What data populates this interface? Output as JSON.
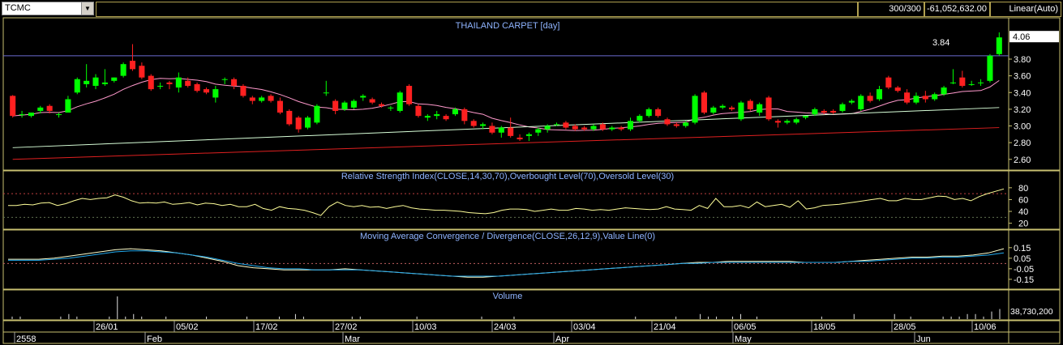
{
  "toolbar": {
    "symbol": "TCMC",
    "bars": "300/300",
    "value": "-61,052,632.00",
    "scale_mode": "Linear(Auto)"
  },
  "colors": {
    "up": "#00ff00",
    "down": "#ff2020",
    "ma_short": "#ff99cc",
    "ma_mid": "#d8ffd8",
    "ma_long": "#e02020",
    "rsi": "#ffff99",
    "macd": "#ffffcc",
    "signal": "#22aaee",
    "panel_border": "#c8c070",
    "title": "#8fb4ff"
  },
  "chart_data": [
    {
      "type": "candlestick",
      "title": "THAILAND CARPET [day]",
      "y_ticks": [
        "4.06",
        "3.80",
        "3.60",
        "3.40",
        "3.20",
        "3.00",
        "2.80",
        "2.60"
      ],
      "last_price_label": "4.06",
      "reference_line": 3.84,
      "reference_label": "3.84",
      "ylim": [
        2.52,
        4.12
      ],
      "candles": [
        {
          "o": 3.36,
          "h": 3.37,
          "l": 3.1,
          "c": 3.12
        },
        {
          "o": 3.14,
          "h": 3.18,
          "l": 3.1,
          "c": 3.14
        },
        {
          "o": 3.12,
          "h": 3.16,
          "l": 3.1,
          "c": 3.16
        },
        {
          "o": 3.18,
          "h": 3.24,
          "l": 3.15,
          "c": 3.22
        },
        {
          "o": 3.24,
          "h": 3.26,
          "l": 3.15,
          "c": 3.18
        },
        {
          "o": 3.14,
          "h": 3.16,
          "l": 3.1,
          "c": 3.14
        },
        {
          "o": 3.16,
          "h": 3.36,
          "l": 3.16,
          "c": 3.32
        },
        {
          "o": 3.4,
          "h": 3.58,
          "l": 3.38,
          "c": 3.56
        },
        {
          "o": 3.5,
          "h": 3.74,
          "l": 3.46,
          "c": 3.54
        },
        {
          "o": 3.48,
          "h": 3.62,
          "l": 3.44,
          "c": 3.58
        },
        {
          "o": 3.5,
          "h": 3.68,
          "l": 3.48,
          "c": 3.52
        },
        {
          "o": 3.54,
          "h": 3.58,
          "l": 3.52,
          "c": 3.58
        },
        {
          "o": 3.6,
          "h": 3.76,
          "l": 3.58,
          "c": 3.74
        },
        {
          "o": 3.78,
          "h": 3.98,
          "l": 3.66,
          "c": 3.68
        },
        {
          "o": 3.72,
          "h": 3.76,
          "l": 3.56,
          "c": 3.58
        },
        {
          "o": 3.6,
          "h": 3.62,
          "l": 3.42,
          "c": 3.44
        },
        {
          "o": 3.48,
          "h": 3.52,
          "l": 3.44,
          "c": 3.48
        },
        {
          "o": 3.52,
          "h": 3.54,
          "l": 3.44,
          "c": 3.5
        },
        {
          "o": 3.46,
          "h": 3.64,
          "l": 3.4,
          "c": 3.58
        },
        {
          "o": 3.54,
          "h": 3.58,
          "l": 3.46,
          "c": 3.48
        },
        {
          "o": 3.5,
          "h": 3.52,
          "l": 3.4,
          "c": 3.42
        },
        {
          "o": 3.44,
          "h": 3.46,
          "l": 3.38,
          "c": 3.4
        },
        {
          "o": 3.34,
          "h": 3.48,
          "l": 3.28,
          "c": 3.44
        },
        {
          "o": 3.56,
          "h": 3.58,
          "l": 3.5,
          "c": 3.56
        },
        {
          "o": 3.56,
          "h": 3.58,
          "l": 3.44,
          "c": 3.48
        },
        {
          "o": 3.48,
          "h": 3.5,
          "l": 3.34,
          "c": 3.36
        },
        {
          "o": 3.34,
          "h": 3.36,
          "l": 3.26,
          "c": 3.3
        },
        {
          "o": 3.3,
          "h": 3.36,
          "l": 3.28,
          "c": 3.34
        },
        {
          "o": 3.36,
          "h": 3.38,
          "l": 3.28,
          "c": 3.3
        },
        {
          "o": 3.3,
          "h": 3.34,
          "l": 3.14,
          "c": 3.16
        },
        {
          "o": 3.18,
          "h": 3.2,
          "l": 3.0,
          "c": 3.02
        },
        {
          "o": 3.1,
          "h": 3.12,
          "l": 2.92,
          "c": 2.96
        },
        {
          "o": 2.98,
          "h": 3.12,
          "l": 2.96,
          "c": 3.1
        },
        {
          "o": 3.04,
          "h": 3.26,
          "l": 3.02,
          "c": 3.24
        },
        {
          "o": 3.4,
          "h": 3.54,
          "l": 3.36,
          "c": 3.4
        },
        {
          "o": 3.3,
          "h": 3.32,
          "l": 3.14,
          "c": 3.18
        },
        {
          "o": 3.2,
          "h": 3.3,
          "l": 3.18,
          "c": 3.28
        },
        {
          "o": 3.22,
          "h": 3.32,
          "l": 3.2,
          "c": 3.3
        },
        {
          "o": 3.34,
          "h": 3.38,
          "l": 3.3,
          "c": 3.36
        },
        {
          "o": 3.32,
          "h": 3.34,
          "l": 3.26,
          "c": 3.28
        },
        {
          "o": 3.26,
          "h": 3.28,
          "l": 3.22,
          "c": 3.24
        },
        {
          "o": 3.22,
          "h": 3.24,
          "l": 3.18,
          "c": 3.22
        },
        {
          "o": 3.18,
          "h": 3.42,
          "l": 3.16,
          "c": 3.4
        },
        {
          "o": 3.48,
          "h": 3.5,
          "l": 3.24,
          "c": 3.26
        },
        {
          "o": 3.24,
          "h": 3.26,
          "l": 3.1,
          "c": 3.12
        },
        {
          "o": 3.1,
          "h": 3.14,
          "l": 3.06,
          "c": 3.12
        },
        {
          "o": 3.12,
          "h": 3.18,
          "l": 3.08,
          "c": 3.14
        },
        {
          "o": 3.12,
          "h": 3.14,
          "l": 3.06,
          "c": 3.08
        },
        {
          "o": 3.14,
          "h": 3.22,
          "l": 3.12,
          "c": 3.2
        },
        {
          "o": 3.2,
          "h": 3.22,
          "l": 3.02,
          "c": 3.06
        },
        {
          "o": 3.06,
          "h": 3.08,
          "l": 2.98,
          "c": 3.0
        },
        {
          "o": 3.0,
          "h": 3.04,
          "l": 2.96,
          "c": 3.02
        },
        {
          "o": 3.0,
          "h": 3.04,
          "l": 2.9,
          "c": 2.92
        },
        {
          "o": 2.92,
          "h": 3.0,
          "l": 2.86,
          "c": 2.98
        },
        {
          "o": 2.98,
          "h": 3.1,
          "l": 2.86,
          "c": 2.88
        },
        {
          "o": 2.86,
          "h": 2.9,
          "l": 2.82,
          "c": 2.84
        },
        {
          "o": 2.88,
          "h": 2.92,
          "l": 2.82,
          "c": 2.9
        },
        {
          "o": 2.92,
          "h": 2.98,
          "l": 2.88,
          "c": 2.96
        },
        {
          "o": 2.96,
          "h": 3.02,
          "l": 2.92,
          "c": 3.0
        },
        {
          "o": 3.02,
          "h": 3.04,
          "l": 3.0,
          "c": 3.02
        },
        {
          "o": 3.04,
          "h": 3.06,
          "l": 2.96,
          "c": 2.98
        },
        {
          "o": 3.0,
          "h": 3.02,
          "l": 2.94,
          "c": 2.96
        },
        {
          "o": 2.98,
          "h": 3.0,
          "l": 2.94,
          "c": 2.96
        },
        {
          "o": 2.96,
          "h": 3.02,
          "l": 2.94,
          "c": 3.0
        },
        {
          "o": 3.02,
          "h": 3.04,
          "l": 2.94,
          "c": 2.96
        },
        {
          "o": 2.96,
          "h": 3.0,
          "l": 2.94,
          "c": 2.98
        },
        {
          "o": 2.98,
          "h": 3.0,
          "l": 2.94,
          "c": 2.96
        },
        {
          "o": 2.96,
          "h": 3.1,
          "l": 2.94,
          "c": 3.06
        },
        {
          "o": 3.06,
          "h": 3.14,
          "l": 3.04,
          "c": 3.12
        },
        {
          "o": 3.12,
          "h": 3.22,
          "l": 3.1,
          "c": 3.2
        },
        {
          "o": 3.2,
          "h": 3.22,
          "l": 3.1,
          "c": 3.12
        },
        {
          "o": 3.08,
          "h": 3.1,
          "l": 3.0,
          "c": 3.02
        },
        {
          "o": 3.02,
          "h": 3.04,
          "l": 2.98,
          "c": 3.0
        },
        {
          "o": 3.0,
          "h": 3.06,
          "l": 2.98,
          "c": 3.04
        },
        {
          "o": 3.04,
          "h": 3.38,
          "l": 3.02,
          "c": 3.36
        },
        {
          "o": 3.4,
          "h": 3.42,
          "l": 3.14,
          "c": 3.16
        },
        {
          "o": 3.16,
          "h": 3.24,
          "l": 3.14,
          "c": 3.22
        },
        {
          "o": 3.22,
          "h": 3.26,
          "l": 3.2,
          "c": 3.24
        },
        {
          "o": 3.22,
          "h": 3.24,
          "l": 3.18,
          "c": 3.2
        },
        {
          "o": 3.08,
          "h": 3.3,
          "l": 3.06,
          "c": 3.28
        },
        {
          "o": 3.3,
          "h": 3.32,
          "l": 3.18,
          "c": 3.2
        },
        {
          "o": 3.16,
          "h": 3.28,
          "l": 3.12,
          "c": 3.26
        },
        {
          "o": 3.34,
          "h": 3.36,
          "l": 3.06,
          "c": 3.08
        },
        {
          "o": 3.06,
          "h": 3.08,
          "l": 2.98,
          "c": 3.04
        },
        {
          "o": 3.04,
          "h": 3.08,
          "l": 3.02,
          "c": 3.06
        },
        {
          "o": 3.04,
          "h": 3.1,
          "l": 3.02,
          "c": 3.08
        },
        {
          "o": 3.1,
          "h": 3.12,
          "l": 3.08,
          "c": 3.12
        },
        {
          "o": 3.14,
          "h": 3.22,
          "l": 3.12,
          "c": 3.2
        },
        {
          "o": 3.18,
          "h": 3.2,
          "l": 3.14,
          "c": 3.16
        },
        {
          "o": 3.18,
          "h": 3.2,
          "l": 3.14,
          "c": 3.16
        },
        {
          "o": 3.18,
          "h": 3.28,
          "l": 3.16,
          "c": 3.26
        },
        {
          "o": 3.28,
          "h": 3.32,
          "l": 3.26,
          "c": 3.3
        },
        {
          "o": 3.2,
          "h": 3.38,
          "l": 3.18,
          "c": 3.36
        },
        {
          "o": 3.36,
          "h": 3.4,
          "l": 3.28,
          "c": 3.3
        },
        {
          "o": 3.32,
          "h": 3.48,
          "l": 3.3,
          "c": 3.44
        },
        {
          "o": 3.58,
          "h": 3.6,
          "l": 3.44,
          "c": 3.46
        },
        {
          "o": 3.46,
          "h": 3.48,
          "l": 3.4,
          "c": 3.42
        },
        {
          "o": 3.4,
          "h": 3.44,
          "l": 3.26,
          "c": 3.28
        },
        {
          "o": 3.28,
          "h": 3.4,
          "l": 3.26,
          "c": 3.36
        },
        {
          "o": 3.36,
          "h": 3.42,
          "l": 3.28,
          "c": 3.32
        },
        {
          "o": 3.32,
          "h": 3.4,
          "l": 3.3,
          "c": 3.38
        },
        {
          "o": 3.38,
          "h": 3.48,
          "l": 3.36,
          "c": 3.46
        },
        {
          "o": 3.52,
          "h": 3.68,
          "l": 3.5,
          "c": 3.52
        },
        {
          "o": 3.58,
          "h": 3.66,
          "l": 3.46,
          "c": 3.48
        },
        {
          "o": 3.5,
          "h": 3.54,
          "l": 3.48,
          "c": 3.5
        },
        {
          "o": 3.52,
          "h": 3.56,
          "l": 3.48,
          "c": 3.52
        },
        {
          "o": 3.54,
          "h": 3.86,
          "l": 3.52,
          "c": 3.84
        },
        {
          "o": 3.86,
          "h": 4.12,
          "l": 3.84,
          "c": 4.06
        }
      ]
    },
    {
      "type": "line",
      "title": "Relative Strength Index(CLOSE,14,30,70),Overbought Level(70),Oversold Level(30)",
      "y_ticks": [
        80,
        60,
        40,
        20
      ],
      "ylim": [
        14,
        88
      ],
      "levels": [
        70,
        30
      ],
      "values": [
        50,
        50,
        52,
        51,
        54,
        55,
        50,
        53,
        58,
        62,
        60,
        62,
        63,
        68,
        64,
        58,
        54,
        55,
        54,
        56,
        52,
        53,
        55,
        51,
        54,
        53,
        50,
        52,
        48,
        48,
        52,
        45,
        42,
        48,
        45,
        44,
        42,
        38,
        33,
        48,
        56,
        50,
        48,
        50,
        47,
        48,
        45,
        48,
        50,
        46,
        44,
        43,
        42,
        42,
        41,
        40,
        38,
        37,
        36,
        38,
        42,
        44,
        44,
        43,
        40,
        42,
        44,
        42,
        42,
        45,
        44,
        42,
        43,
        42,
        44,
        46,
        45,
        44,
        43,
        44,
        48,
        44,
        43,
        42,
        50,
        45,
        62,
        48,
        48,
        50,
        46,
        56,
        48,
        50,
        52,
        47,
        58,
        44,
        46,
        50,
        51,
        52,
        54,
        56,
        58,
        60,
        62,
        58,
        58,
        62,
        60,
        60,
        63,
        66,
        65,
        60,
        62,
        58,
        65,
        70,
        74,
        78
      ]
    },
    {
      "type": "line",
      "title": "Moving Average Convergence / Divergence(CLOSE,26,12,9),Value Line(0)",
      "y_ticks": [
        "0.15",
        "0.05",
        "-0.05",
        "-0.15"
      ],
      "ylim": [
        -0.22,
        0.21
      ],
      "zero_line": 0,
      "series": [
        {
          "values": [
            0.04,
            0.04,
            0.04,
            0.05,
            0.07,
            0.09,
            0.11,
            0.13,
            0.14,
            0.13,
            0.12,
            0.1,
            0.08,
            0.05,
            0.02,
            -0.02,
            -0.04,
            -0.05,
            -0.06,
            -0.06,
            -0.06,
            -0.06,
            -0.05,
            -0.06,
            -0.07,
            -0.08,
            -0.09,
            -0.1,
            -0.11,
            -0.12,
            -0.13,
            -0.13,
            -0.12,
            -0.11,
            -0.1,
            -0.09,
            -0.08,
            -0.07,
            -0.06,
            -0.05,
            -0.04,
            -0.03,
            -0.02,
            -0.01,
            0.0,
            0.01,
            0.01,
            0.02,
            0.02,
            0.02,
            0.02,
            0.02,
            0.01,
            0.01,
            0.01,
            0.02,
            0.03,
            0.04,
            0.05,
            0.06,
            0.06,
            0.07,
            0.07,
            0.08,
            0.1,
            0.14
          ]
        },
        {
          "values": [
            0.03,
            0.03,
            0.03,
            0.04,
            0.05,
            0.07,
            0.09,
            0.11,
            0.12,
            0.12,
            0.11,
            0.1,
            0.08,
            0.06,
            0.03,
            0.0,
            -0.02,
            -0.04,
            -0.05,
            -0.05,
            -0.06,
            -0.06,
            -0.06,
            -0.06,
            -0.07,
            -0.08,
            -0.09,
            -0.1,
            -0.11,
            -0.12,
            -0.12,
            -0.12,
            -0.12,
            -0.11,
            -0.1,
            -0.09,
            -0.08,
            -0.07,
            -0.06,
            -0.05,
            -0.04,
            -0.03,
            -0.02,
            -0.01,
            0.0,
            0.0,
            0.01,
            0.01,
            0.01,
            0.01,
            0.01,
            0.01,
            0.01,
            0.01,
            0.01,
            0.02,
            0.02,
            0.03,
            0.04,
            0.05,
            0.05,
            0.06,
            0.06,
            0.07,
            0.08,
            0.1
          ]
        }
      ]
    },
    {
      "type": "bar",
      "title": "Volume",
      "last_value_label": "38,730,200",
      "values": [
        1,
        1,
        0,
        0,
        0,
        0,
        1,
        2,
        1,
        0,
        0,
        0,
        1,
        9,
        1,
        2,
        1,
        0,
        0,
        1,
        0,
        0,
        0,
        0,
        1,
        0,
        0,
        0,
        0,
        1,
        0,
        0,
        0,
        1,
        0,
        2,
        1,
        0,
        0,
        0,
        0,
        0,
        1,
        1,
        0,
        0,
        0,
        0,
        0,
        0,
        1,
        0,
        0,
        0,
        0,
        0,
        0,
        0,
        1,
        0,
        0,
        0,
        1,
        0,
        0,
        0,
        0,
        0,
        0,
        0,
        0,
        0,
        0,
        0,
        0,
        0,
        0,
        1,
        0,
        0,
        0,
        0,
        1,
        0,
        0,
        2,
        1,
        1,
        0,
        1,
        2,
        0,
        1,
        0,
        0,
        0,
        0,
        0,
        0,
        0,
        1,
        0,
        0,
        0,
        2,
        0,
        0,
        0,
        0,
        2,
        0,
        1,
        0,
        0,
        0,
        1,
        1,
        1,
        2,
        2,
        1,
        3,
        4
      ]
    }
  ],
  "x_axis": {
    "date_labels": [
      "26/01",
      "05/02",
      "17/02",
      "27/02",
      "10/03",
      "24/03",
      "03/04",
      "21/04",
      "06/05",
      "18/05",
      "28/05",
      "10/06"
    ],
    "month_labels": [
      "2558",
      "Feb",
      "Mar",
      "Apr",
      "May",
      "Jun"
    ]
  }
}
